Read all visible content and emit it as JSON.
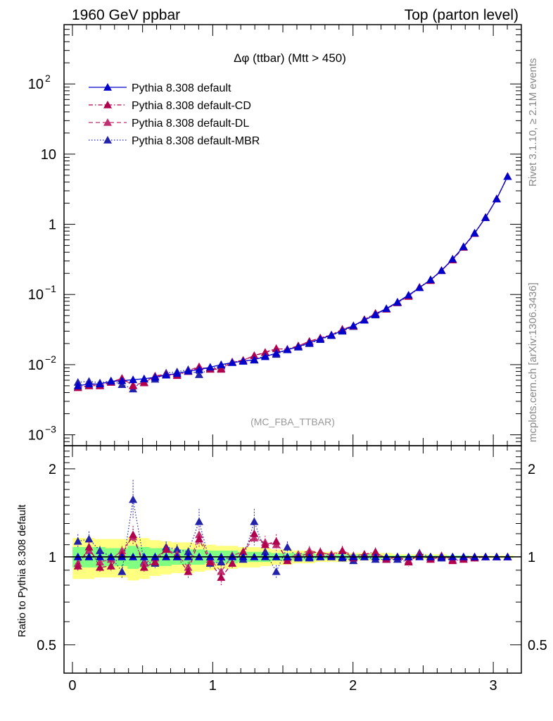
{
  "header": {
    "left": "1960 GeV ppbar",
    "right": "Top (parton level)"
  },
  "side_labels": {
    "rivet": "Rivet 3.1.10, ≥ 2.1M events",
    "mcplots": "mcplots.cern.ch [arXiv:1306.3436]"
  },
  "watermark": "(MC_FBA_TTBAR)",
  "chart_data": [
    {
      "type": "line",
      "title": "Δφ (ttbar) (Mtt > 450)",
      "yscale": "log",
      "xlim": [
        -0.06,
        3.2
      ],
      "ylim": [
        0.0007,
        700
      ],
      "yticks": [
        {
          "value": 0.001,
          "base": "10",
          "exp": "−3"
        },
        {
          "value": 0.01,
          "base": "10",
          "exp": "−2"
        },
        {
          "value": 0.1,
          "base": "10",
          "exp": "−1"
        },
        {
          "value": 1,
          "base": "1",
          "exp": ""
        },
        {
          "value": 10,
          "base": "10",
          "exp": ""
        },
        {
          "value": 100,
          "base": "10",
          "exp": "2"
        }
      ],
      "legend_position": "top-left",
      "x": [
        0.039,
        0.118,
        0.196,
        0.275,
        0.353,
        0.432,
        0.511,
        0.589,
        0.668,
        0.746,
        0.825,
        0.903,
        0.982,
        1.06,
        1.139,
        1.217,
        1.296,
        1.374,
        1.453,
        1.532,
        1.61,
        1.689,
        1.767,
        1.846,
        1.924,
        2.003,
        2.081,
        2.16,
        2.238,
        2.317,
        2.396,
        2.474,
        2.553,
        2.631,
        2.71,
        2.788,
        2.867,
        2.945,
        3.024,
        3.102
      ],
      "series": [
        {
          "name": "Pythia 8.308 default",
          "color": "#0000cc",
          "style": "solid",
          "values": [
            0.005,
            0.0053,
            0.0053,
            0.0058,
            0.0059,
            0.0061,
            0.0063,
            0.0066,
            0.0071,
            0.0075,
            0.0081,
            0.0085,
            0.0092,
            0.01,
            0.0107,
            0.0112,
            0.0118,
            0.013,
            0.0146,
            0.0163,
            0.018,
            0.0205,
            0.0232,
            0.0263,
            0.0305,
            0.036,
            0.043,
            0.052,
            0.063,
            0.078,
            0.098,
            0.125,
            0.162,
            0.22,
            0.32,
            0.48,
            0.75,
            1.25,
            2.3,
            4.8
          ]
        },
        {
          "name": "Pythia 8.308 default-CD",
          "color": "#b0004e",
          "style": "dashdot",
          "values": [
            0.0047,
            0.005,
            0.005,
            0.0056,
            0.0064,
            0.005,
            0.0056,
            0.0069,
            0.0073,
            0.007,
            0.008,
            0.0092,
            0.0086,
            0.0086,
            0.0108,
            0.0115,
            0.0135,
            0.015,
            0.017,
            0.0165,
            0.0185,
            0.0215,
            0.024,
            0.0265,
            0.032,
            0.0355,
            0.044,
            0.054,
            0.062,
            0.077,
            0.094,
            0.127,
            0.158,
            0.22,
            0.31,
            0.47,
            0.74,
            1.25,
            2.31,
            4.82
          ]
        },
        {
          "name": "Pythia 8.308 default-DL",
          "color": "#c03070",
          "style": "dash",
          "values": [
            0.0048,
            0.0051,
            0.0051,
            0.0056,
            0.0063,
            0.0051,
            0.0055,
            0.0068,
            0.0073,
            0.0072,
            0.0082,
            0.0094,
            0.0087,
            0.0089,
            0.011,
            0.0116,
            0.0134,
            0.0148,
            0.0168,
            0.0167,
            0.0186,
            0.0214,
            0.024,
            0.0266,
            0.0318,
            0.0357,
            0.0438,
            0.0535,
            0.0625,
            0.0775,
            0.095,
            0.126,
            0.16,
            0.22,
            0.315,
            0.475,
            0.745,
            1.25,
            2.305,
            4.81
          ]
        },
        {
          "name": "Pythia 8.308 default-MBR",
          "color": "#2222aa",
          "style": "dot",
          "values": [
            0.0056,
            0.0058,
            0.0055,
            0.0059,
            0.0052,
            0.0045,
            0.0062,
            0.0062,
            0.0076,
            0.0079,
            0.0085,
            0.0072,
            0.0088,
            0.0096,
            0.0108,
            0.0112,
            0.0116,
            0.0135,
            0.014,
            0.0165,
            0.0178,
            0.02,
            0.0228,
            0.026,
            0.03,
            0.035,
            0.043,
            0.051,
            0.062,
            0.076,
            0.095,
            0.126,
            0.163,
            0.218,
            0.318,
            0.48,
            0.75,
            1.25,
            2.3,
            4.8
          ]
        }
      ]
    },
    {
      "type": "line",
      "ylabel": "Ratio to Pythia 8.308 default",
      "yscale": "log",
      "xlim": [
        -0.06,
        3.2
      ],
      "ylim": [
        0.4,
        2.4
      ],
      "xticks": [
        0,
        1,
        2,
        3
      ],
      "yticks": [
        0.5,
        1,
        2
      ],
      "bands": {
        "yellow": {
          "color": "#ffff80",
          "lower": [
            0.84,
            0.84,
            0.85,
            0.85,
            0.85,
            0.83,
            0.84,
            0.86,
            0.87,
            0.88,
            0.88,
            0.89,
            0.9,
            0.91,
            0.91,
            0.92,
            0.92,
            0.93,
            0.94,
            0.94,
            0.95,
            0.95,
            0.96,
            0.96,
            0.96,
            0.97,
            0.97,
            0.97,
            0.97,
            0.98,
            0.98,
            0.98,
            0.98,
            0.98,
            0.99,
            0.99,
            0.99,
            0.99,
            0.99,
            0.99
          ],
          "upper": [
            1.16,
            1.16,
            1.15,
            1.15,
            1.15,
            1.17,
            1.16,
            1.14,
            1.13,
            1.12,
            1.12,
            1.11,
            1.1,
            1.09,
            1.09,
            1.08,
            1.08,
            1.07,
            1.06,
            1.06,
            1.05,
            1.05,
            1.04,
            1.04,
            1.04,
            1.03,
            1.03,
            1.03,
            1.03,
            1.02,
            1.02,
            1.02,
            1.02,
            1.02,
            1.01,
            1.01,
            1.01,
            1.01,
            1.01,
            1.01
          ]
        },
        "green": {
          "color": "#80ff80",
          "lower": [
            0.92,
            0.92,
            0.92,
            0.93,
            0.93,
            0.91,
            0.92,
            0.93,
            0.93,
            0.94,
            0.94,
            0.94,
            0.95,
            0.95,
            0.95,
            0.96,
            0.96,
            0.96,
            0.97,
            0.97,
            0.97,
            0.97,
            0.98,
            0.98,
            0.98,
            0.98,
            0.98,
            0.98,
            0.99,
            0.99,
            0.99,
            0.99,
            0.99,
            0.99,
            0.99,
            0.99,
            0.995,
            0.995,
            0.995,
            0.995
          ],
          "upper": [
            1.08,
            1.08,
            1.08,
            1.07,
            1.07,
            1.09,
            1.08,
            1.07,
            1.07,
            1.06,
            1.06,
            1.06,
            1.05,
            1.05,
            1.05,
            1.04,
            1.04,
            1.04,
            1.03,
            1.03,
            1.03,
            1.03,
            1.02,
            1.02,
            1.02,
            1.02,
            1.02,
            1.02,
            1.01,
            1.01,
            1.01,
            1.01,
            1.01,
            1.01,
            1.01,
            1.01,
            1.005,
            1.005,
            1.005,
            1.005
          ]
        }
      },
      "x": [
        0.039,
        0.118,
        0.196,
        0.275,
        0.353,
        0.432,
        0.511,
        0.589,
        0.668,
        0.746,
        0.825,
        0.903,
        0.982,
        1.06,
        1.139,
        1.217,
        1.296,
        1.374,
        1.453,
        1.532,
        1.61,
        1.689,
        1.767,
        1.846,
        1.924,
        2.003,
        2.081,
        2.16,
        2.238,
        2.317,
        2.396,
        2.474,
        2.553,
        2.631,
        2.71,
        2.788,
        2.867,
        2.945,
        3.024,
        3.102
      ],
      "series": [
        {
          "name": "Pythia 8.308 default",
          "color": "#0000cc",
          "style": "solid",
          "values": [
            1,
            1,
            1,
            1,
            1,
            1,
            1,
            1,
            1,
            1,
            1,
            1,
            1,
            1,
            1,
            1,
            1,
            1,
            1,
            1,
            1,
            1,
            1,
            1,
            1,
            1,
            1,
            1,
            1,
            1,
            1,
            1,
            1,
            1,
            1,
            1,
            1,
            1,
            1,
            1
          ]
        },
        {
          "name": "Pythia 8.308 default-CD",
          "color": "#b0004e",
          "style": "dashdot",
          "values": [
            0.93,
            1.08,
            0.92,
            0.93,
            1.02,
            1.19,
            0.92,
            0.96,
            1.06,
            1.0,
            0.89,
            1.15,
            0.96,
            0.85,
            0.95,
            1.04,
            1.2,
            1.1,
            1.13,
            0.97,
            1.0,
            1.03,
            1.04,
            1.01,
            1.05,
            0.99,
            1.02,
            1.04,
            0.98,
            1.0,
            0.96,
            1.02,
            0.98,
            1.0,
            0.97,
            0.98,
            0.99,
            1.0,
            1.0,
            1.0
          ]
        },
        {
          "name": "Pythia 8.308 default-DL",
          "color": "#c03070",
          "style": "dash",
          "values": [
            0.95,
            1.05,
            0.96,
            0.98,
            1.05,
            1.17,
            0.95,
            0.99,
            1.06,
            1.02,
            0.92,
            1.19,
            0.98,
            0.89,
            1.01,
            1.04,
            1.16,
            1.12,
            1.1,
            0.99,
            1.02,
            1.05,
            1.03,
            1.02,
            1.05,
            1.01,
            1.02,
            1.03,
            0.99,
            1.0,
            0.97,
            1.01,
            0.99,
            1.01,
            0.98,
            0.99,
            1.0,
            1.0,
            1.0,
            1.0
          ]
        },
        {
          "name": "Pythia 8.308 default-MBR",
          "color": "#2222aa",
          "style": "dot",
          "values": [
            1.13,
            1.15,
            1.05,
            1.0,
            0.89,
            1.57,
            0.96,
            0.95,
            1.08,
            1.06,
            1.04,
            1.32,
            0.95,
            0.96,
            1.01,
            0.98,
            1.32,
            1.04,
            0.89,
            1.08,
            0.99,
            0.99,
            1.0,
            1.01,
            0.99,
            0.97,
            1.0,
            0.98,
            0.98,
            0.98,
            0.96,
            1.03,
            1.0,
            0.99,
            1.0,
            1.0,
            1.0,
            1.0,
            1.0,
            1.0
          ]
        }
      ]
    }
  ]
}
